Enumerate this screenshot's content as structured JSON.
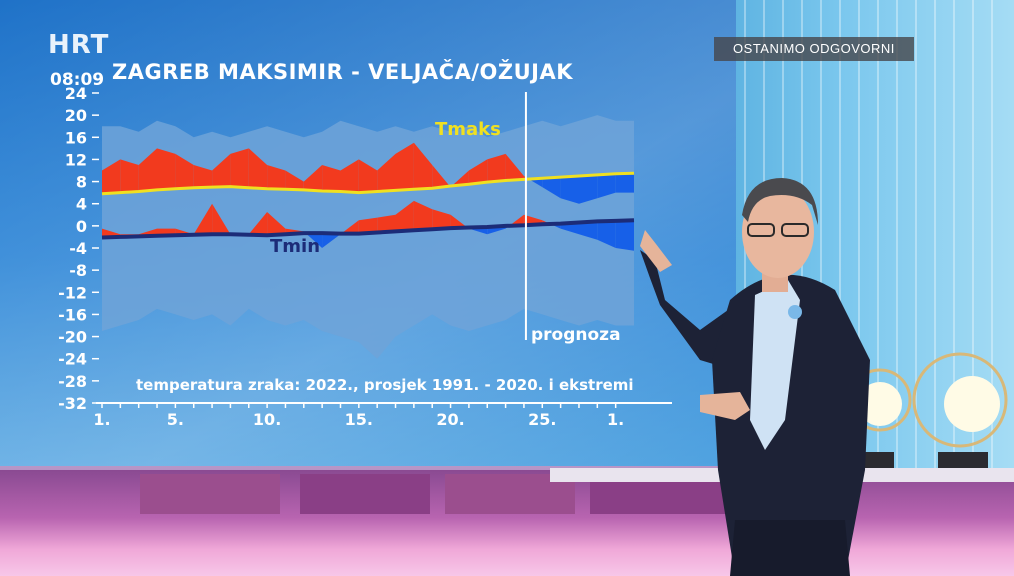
{
  "broadcast": {
    "channel_logo": "HRT",
    "clock": "08:09",
    "badge": "OSTANIMO ODGOVORNI"
  },
  "chart_data": {
    "type": "area",
    "title": "ZAGREB MAKSIMIR - VELJAČA/OŽUJAK",
    "caption": "temperatura zraka: 2022., prosjek 1991. - 2020. i ekstremi",
    "forecast_label": "prognoza",
    "forecast_start_day": 24,
    "ylim": [
      -32,
      24
    ],
    "yticks": [
      24,
      20,
      16,
      12,
      8,
      4,
      0,
      -4,
      -8,
      -12,
      -16,
      -20,
      -24,
      -28,
      -32
    ],
    "x_tick_labels": [
      "1.",
      "5.",
      "10.",
      "15.",
      "20.",
      "25.",
      "1."
    ],
    "x_tick_days": [
      1,
      5,
      10,
      15,
      20,
      25,
      29
    ],
    "x_minor_tick_days": [
      1,
      2,
      3,
      4,
      5,
      6,
      7,
      8,
      9,
      10,
      11,
      12,
      13,
      14,
      15,
      16,
      17,
      18,
      19,
      20,
      21,
      22,
      23,
      24,
      25,
      26,
      27,
      28,
      29
    ],
    "x": [
      1,
      2,
      3,
      4,
      5,
      6,
      7,
      8,
      9,
      10,
      11,
      12,
      13,
      14,
      15,
      16,
      17,
      18,
      19,
      20,
      21,
      22,
      23,
      24,
      25,
      26,
      27,
      28,
      29,
      30
    ],
    "series": [
      {
        "name": "",
        "role": "record_max",
        "values": [
          18,
          18,
          17,
          19,
          18,
          16,
          17,
          16,
          17,
          18,
          17,
          16,
          17,
          19,
          18,
          17,
          18,
          17,
          18,
          17,
          18,
          16,
          17,
          18,
          19,
          18,
          19,
          20,
          19,
          19
        ]
      },
      {
        "name": "",
        "role": "record_min",
        "values": [
          -19,
          -18,
          -17,
          -15,
          -16,
          -17,
          -16,
          -18,
          -15,
          -17,
          -18,
          -17,
          -19,
          -20,
          -21,
          -24,
          -20,
          -18,
          -16,
          -18,
          -19,
          -18,
          -17,
          -15,
          -16,
          -17,
          -18,
          -17,
          -18,
          -18
        ]
      },
      {
        "name": "Tmaks",
        "role": "avg_max",
        "color": "#f0e020",
        "values": [
          5.8,
          6.0,
          6.2,
          6.5,
          6.7,
          6.9,
          7.0,
          7.1,
          6.9,
          6.7,
          6.6,
          6.5,
          6.3,
          6.2,
          6.0,
          6.2,
          6.4,
          6.6,
          6.8,
          7.2,
          7.5,
          7.9,
          8.2,
          8.4,
          8.6,
          8.8,
          9.0,
          9.2,
          9.4,
          9.5
        ]
      },
      {
        "name": "",
        "role": "observed_max_2022",
        "values": [
          10,
          12,
          11,
          14,
          13,
          11,
          10,
          13,
          14,
          11,
          10,
          8,
          11,
          10,
          12,
          10,
          13,
          15,
          11,
          7,
          10,
          12,
          13,
          9,
          7,
          5,
          4,
          5,
          6,
          6
        ]
      },
      {
        "name": "Tmin",
        "role": "avg_min",
        "color": "#1c2c78",
        "values": [
          -2.1,
          -2.0,
          -1.9,
          -1.8,
          -1.7,
          -1.6,
          -1.5,
          -1.5,
          -1.6,
          -1.7,
          -1.5,
          -1.3,
          -1.3,
          -1.4,
          -1.4,
          -1.2,
          -1.0,
          -0.8,
          -0.6,
          -0.4,
          -0.3,
          -0.2,
          0.0,
          0.1,
          0.3,
          0.4,
          0.6,
          0.8,
          0.9,
          1.0
        ]
      },
      {
        "name": "",
        "role": "observed_min_2022",
        "values": [
          -0.5,
          -1.5,
          -1.5,
          -0.5,
          -0.5,
          -1.5,
          4.0,
          -1.5,
          -1.5,
          2.5,
          -0.5,
          -1.0,
          -4.0,
          -1.5,
          1.0,
          1.5,
          2.0,
          4.5,
          3.0,
          2.0,
          -0.5,
          -1.5,
          -0.5,
          2.0,
          1.0,
          -0.5,
          -1.5,
          -2.5,
          -4.0,
          -4.5
        ]
      }
    ],
    "fills": {
      "record_band": "#6fa3d8",
      "above_average": "#f23a1e",
      "below_average": "#1760e8"
    }
  }
}
